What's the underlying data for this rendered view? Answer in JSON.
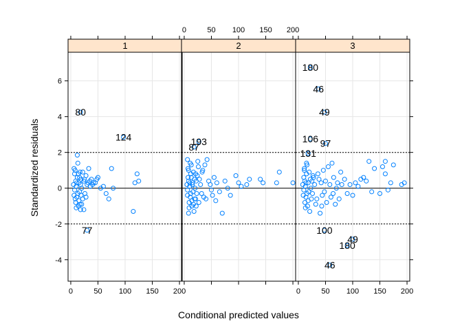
{
  "chart_data": {
    "type": "scatter",
    "title": "",
    "xlabel": "Conditional predicted values",
    "ylabel": "Standardized residuals",
    "xlim": [
      -5,
      205
    ],
    "ylim": [
      -5.2,
      7.6
    ],
    "x_ticks": [
      "0",
      "50",
      "100",
      "150",
      "200"
    ],
    "y_ticks": [
      "-4",
      "-2",
      "0",
      "2",
      "4",
      "6"
    ],
    "grid": true,
    "reference_lines": {
      "solid": [
        0
      ],
      "dotted": [
        -2,
        2
      ]
    },
    "point_color": "#0080ff",
    "strip_color": "#ffe5cc",
    "panels": [
      {
        "strip": "1",
        "points": [
          [
            5,
            0.2
          ],
          [
            6,
            -0.4
          ],
          [
            7,
            0.8
          ],
          [
            8,
            1.0
          ],
          [
            9,
            -0.8
          ],
          [
            10,
            0.1
          ],
          [
            11,
            -0.5
          ],
          [
            12,
            0.6
          ],
          [
            13,
            1.4
          ],
          [
            14,
            -1.0
          ],
          [
            15,
            0.3
          ],
          [
            16,
            -0.2
          ],
          [
            17,
            0.9
          ],
          [
            18,
            -1.2
          ],
          [
            19,
            0.5
          ],
          [
            20,
            0.0
          ],
          [
            22,
            -0.6
          ],
          [
            24,
            0.4
          ],
          [
            26,
            -0.3
          ],
          [
            28,
            0.7
          ],
          [
            7,
            -0.1
          ],
          [
            9,
            0.4
          ],
          [
            11,
            0.3
          ],
          [
            13,
            -0.3
          ],
          [
            15,
            -0.7
          ],
          [
            6,
            1.1
          ],
          [
            10,
            -1.1
          ],
          [
            12,
            1.85
          ],
          [
            16,
            0.6
          ],
          [
            18,
            0.2
          ],
          [
            20,
            -0.9
          ],
          [
            8,
            -0.6
          ],
          [
            14,
            0.8
          ],
          [
            25,
            0.5
          ],
          [
            30,
            0.2
          ],
          [
            32,
            0.3
          ],
          [
            35,
            0.4
          ],
          [
            38,
            0.5
          ],
          [
            40,
            0.2
          ],
          [
            42,
            0.3
          ],
          [
            48,
            0.5
          ],
          [
            50,
            0.6
          ],
          [
            55,
            0.0
          ],
          [
            60,
            0.1
          ],
          [
            65,
            -0.3
          ],
          [
            70,
            -0.6
          ],
          [
            75,
            1.1
          ],
          [
            78,
            0.0
          ],
          [
            115,
            -1.3
          ],
          [
            118,
            0.3
          ],
          [
            122,
            0.8
          ],
          [
            125,
            0.4
          ],
          [
            24,
            -1.2
          ],
          [
            28,
            -0.5
          ],
          [
            33,
            1.1
          ],
          [
            45,
            0.3
          ],
          [
            36,
            0.1
          ],
          [
            22,
            0.9
          ],
          [
            19,
            -0.4
          ],
          [
            17,
            -0.9
          ]
        ],
        "labeled_points": [
          {
            "label": "80",
            "x": 18,
            "y": 4.25
          },
          {
            "label": "124",
            "x": 97,
            "y": 2.85
          },
          {
            "label": "77",
            "x": 30,
            "y": -2.35
          }
        ]
      },
      {
        "strip": "2",
        "points": [
          [
            5,
            0.2
          ],
          [
            6,
            -0.4
          ],
          [
            7,
            0.6
          ],
          [
            8,
            1.0
          ],
          [
            9,
            -0.8
          ],
          [
            10,
            0.1
          ],
          [
            11,
            -0.5
          ],
          [
            12,
            0.8
          ],
          [
            13,
            1.3
          ],
          [
            14,
            -1.0
          ],
          [
            15,
            0.3
          ],
          [
            16,
            -0.2
          ],
          [
            17,
            0.9
          ],
          [
            18,
            -1.3
          ],
          [
            19,
            0.5
          ],
          [
            20,
            0.0
          ],
          [
            21,
            -0.6
          ],
          [
            22,
            0.4
          ],
          [
            23,
            -0.3
          ],
          [
            24,
            0.7
          ],
          [
            6,
            -0.1
          ],
          [
            8,
            0.4
          ],
          [
            10,
            0.3
          ],
          [
            12,
            -0.3
          ],
          [
            14,
            -0.7
          ],
          [
            7,
            1.1
          ],
          [
            9,
            -1.1
          ],
          [
            11,
            1.4
          ],
          [
            13,
            0.6
          ],
          [
            15,
            0.2
          ],
          [
            17,
            -0.9
          ],
          [
            19,
            -0.6
          ],
          [
            21,
            0.8
          ],
          [
            25,
            1.5
          ],
          [
            26,
            1.2
          ],
          [
            28,
            0.5
          ],
          [
            30,
            0.2
          ],
          [
            32,
            -0.3
          ],
          [
            34,
            1.0
          ],
          [
            36,
            -0.5
          ],
          [
            38,
            1.3
          ],
          [
            40,
            -0.6
          ],
          [
            42,
            1.6
          ],
          [
            45,
            0.4
          ],
          [
            48,
            0.2
          ],
          [
            50,
            -0.1
          ],
          [
            52,
            -0.4
          ],
          [
            55,
            0.6
          ],
          [
            58,
            -0.7
          ],
          [
            60,
            0.3
          ],
          [
            65,
            -0.2
          ],
          [
            70,
            -1.4
          ],
          [
            75,
            0.4
          ],
          [
            80,
            0.0
          ],
          [
            85,
            -0.4
          ],
          [
            95,
            0.7
          ],
          [
            100,
            0.3
          ],
          [
            105,
            0.1
          ],
          [
            115,
            0.2
          ],
          [
            120,
            0.5
          ],
          [
            140,
            0.5
          ],
          [
            145,
            0.3
          ],
          [
            170,
            0.3
          ],
          [
            175,
            0.9
          ],
          [
            200,
            0.3
          ],
          [
            6,
            1.6
          ],
          [
            8,
            -1.4
          ],
          [
            22,
            -1.0
          ],
          [
            27,
            -0.8
          ],
          [
            33,
            0.9
          ]
        ],
        "labeled_points": [
          {
            "label": "193",
            "x": 27,
            "y": 2.6
          },
          {
            "label": "87",
            "x": 18,
            "y": 2.3
          }
        ]
      },
      {
        "strip": "3",
        "points": [
          [
            8,
            0.2
          ],
          [
            9,
            -0.4
          ],
          [
            10,
            0.6
          ],
          [
            11,
            1.0
          ],
          [
            12,
            -0.8
          ],
          [
            13,
            0.1
          ],
          [
            14,
            -0.5
          ],
          [
            15,
            0.8
          ],
          [
            16,
            1.3
          ],
          [
            17,
            -1.0
          ],
          [
            18,
            0.3
          ],
          [
            19,
            -0.2
          ],
          [
            20,
            0.9
          ],
          [
            21,
            -1.3
          ],
          [
            22,
            0.5
          ],
          [
            23,
            0.0
          ],
          [
            24,
            -0.6
          ],
          [
            25,
            0.4
          ],
          [
            26,
            -0.3
          ],
          [
            27,
            0.7
          ],
          [
            10,
            -0.1
          ],
          [
            12,
            0.4
          ],
          [
            14,
            0.3
          ],
          [
            16,
            -0.3
          ],
          [
            18,
            -0.7
          ],
          [
            11,
            1.1
          ],
          [
            13,
            -1.1
          ],
          [
            15,
            1.4
          ],
          [
            28,
            0.6
          ],
          [
            30,
            0.2
          ],
          [
            32,
            -0.9
          ],
          [
            34,
            -0.6
          ],
          [
            36,
            0.8
          ],
          [
            38,
            0.5
          ],
          [
            40,
            -1.4
          ],
          [
            42,
            0.3
          ],
          [
            44,
            -0.4
          ],
          [
            46,
            1.0
          ],
          [
            48,
            -0.2
          ],
          [
            50,
            0.4
          ],
          [
            52,
            -0.8
          ],
          [
            55,
            1.2
          ],
          [
            58,
            0.2
          ],
          [
            60,
            -0.5
          ],
          [
            62,
            1.4
          ],
          [
            65,
            0.6
          ],
          [
            68,
            -0.9
          ],
          [
            70,
            0.0
          ],
          [
            72,
            0.3
          ],
          [
            75,
            -0.6
          ],
          [
            78,
            0.9
          ],
          [
            80,
            0.2
          ],
          [
            85,
            0.5
          ],
          [
            90,
            -0.3
          ],
          [
            95,
            0.2
          ],
          [
            100,
            -0.4
          ],
          [
            105,
            0.3
          ],
          [
            110,
            0.1
          ],
          [
            115,
            0.5
          ],
          [
            120,
            0.6
          ],
          [
            125,
            0.4
          ],
          [
            130,
            1.5
          ],
          [
            135,
            -0.2
          ],
          [
            140,
            1.1
          ],
          [
            150,
            -0.3
          ],
          [
            155,
            1.2
          ],
          [
            160,
            0.8
          ],
          [
            165,
            -0.1
          ],
          [
            170,
            0.3
          ],
          [
            175,
            1.3
          ],
          [
            190,
            0.2
          ],
          [
            195,
            0.3
          ],
          [
            160,
            1.5
          ],
          [
            43,
            -1.0
          ],
          [
            64,
            -0.3
          ]
        ],
        "labeled_points": [
          {
            "label": "180",
            "x": 22,
            "y": 6.75
          },
          {
            "label": "46",
            "x": 37,
            "y": 5.55
          },
          {
            "label": "49",
            "x": 48,
            "y": 4.25
          },
          {
            "label": "106",
            "x": 22,
            "y": 2.75
          },
          {
            "label": "97",
            "x": 50,
            "y": 2.5
          },
          {
            "label": "131",
            "x": 18,
            "y": 1.95
          },
          {
            "label": "100",
            "x": 48,
            "y": -2.35
          },
          {
            "label": "49",
            "x": 100,
            "y": -2.85
          },
          {
            "label": "180",
            "x": 90,
            "y": -3.2
          },
          {
            "label": "46",
            "x": 58,
            "y": -4.3
          }
        ]
      }
    ]
  }
}
